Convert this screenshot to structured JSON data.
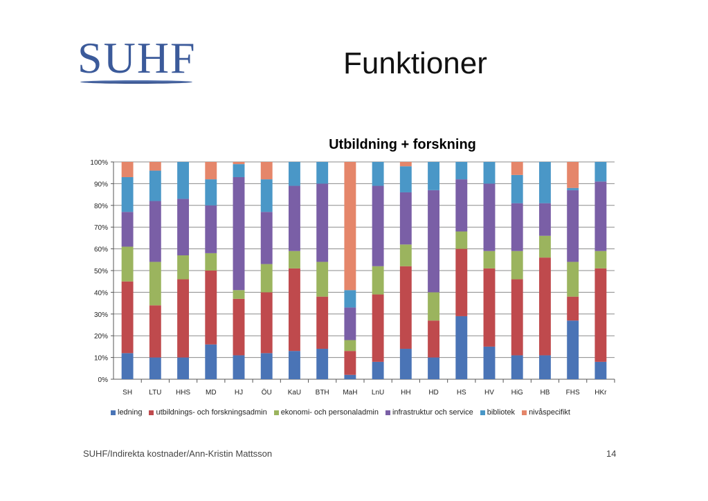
{
  "logo": {
    "text": "SUHF"
  },
  "slide": {
    "title": "Funktioner",
    "footer": "SUHF/Indirekta kostnader/Ann-Kristin Mattsson",
    "page": "14"
  },
  "chart_data": {
    "type": "bar",
    "stacked": true,
    "title": "Utbildning + forskning",
    "xlabel": "",
    "ylabel": "",
    "ylim": [
      0,
      100
    ],
    "ytick_labels": [
      "0%",
      "10%",
      "20%",
      "30%",
      "40%",
      "50%",
      "60%",
      "70%",
      "80%",
      "90%",
      "100%"
    ],
    "grid": true,
    "legend_position": "bottom",
    "categories": [
      "SH",
      "LTU",
      "HHS",
      "MD",
      "HJ",
      "ÖU",
      "KaU",
      "BTH",
      "MaH",
      "LnU",
      "HH",
      "HD",
      "HS",
      "HV",
      "HiG",
      "HB",
      "FHS",
      "HKr"
    ],
    "series": [
      {
        "name": "ledning",
        "color": "#4a74b6",
        "values": [
          12,
          10,
          10,
          16,
          11,
          12,
          13,
          14,
          2,
          8,
          14,
          10,
          29,
          15,
          11,
          11,
          27,
          8
        ]
      },
      {
        "name": "utbildnings- och forskningsadmin",
        "color": "#bf4a4d",
        "values": [
          33,
          24,
          36,
          34,
          26,
          28,
          38,
          24,
          11,
          31,
          38,
          17,
          31,
          36,
          35,
          45,
          11,
          43
        ]
      },
      {
        "name": "ekonomi- och personaladmin",
        "color": "#9bb45e",
        "values": [
          16,
          20,
          11,
          8,
          4,
          13,
          8,
          16,
          5,
          13,
          10,
          13,
          8,
          8,
          13,
          10,
          16,
          8
        ]
      },
      {
        "name": "infrastruktur och service",
        "color": "#7a5fa6",
        "values": [
          16,
          28,
          26,
          22,
          52,
          24,
          30,
          36,
          15,
          37,
          24,
          47,
          24,
          31,
          22,
          15,
          33,
          32
        ]
      },
      {
        "name": "bibliotek",
        "color": "#4a97c7",
        "values": [
          16,
          14,
          17,
          12,
          6,
          15,
          11,
          10,
          8,
          11,
          12,
          13,
          8,
          10,
          13,
          19,
          1,
          9
        ]
      },
      {
        "name": "nivåspecifikt",
        "color": "#e5866a",
        "values": [
          7,
          4,
          0,
          8,
          1,
          8,
          0,
          0,
          59,
          0,
          2,
          0,
          0,
          0,
          6,
          0,
          12,
          0
        ]
      }
    ]
  }
}
